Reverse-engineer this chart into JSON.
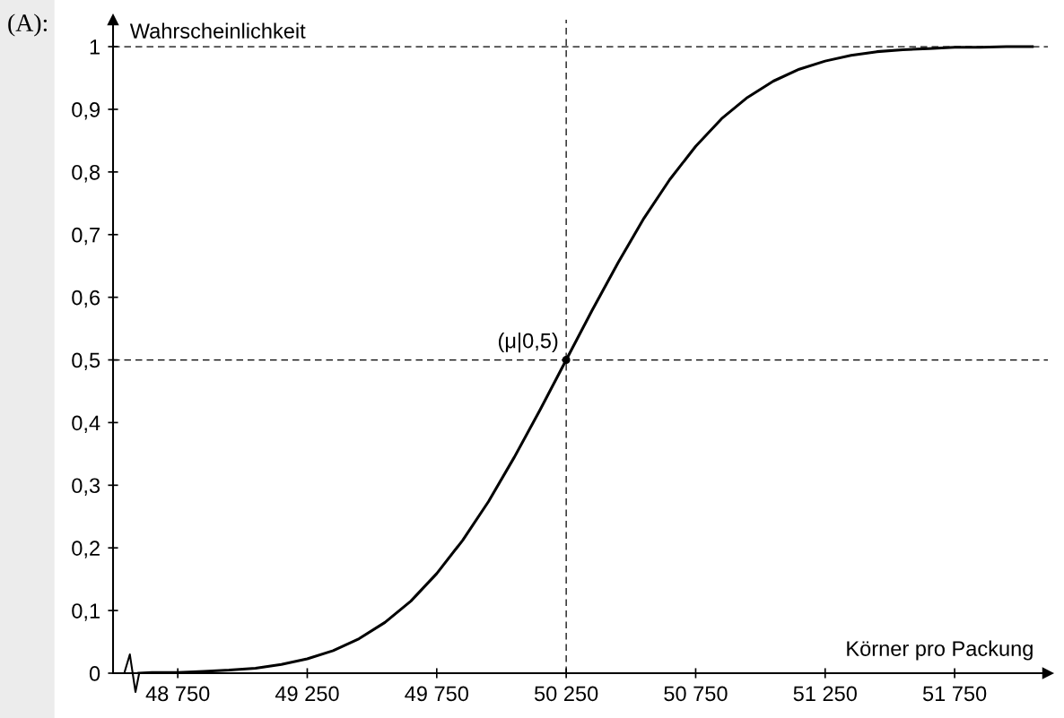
{
  "chart_data": {
    "type": "line",
    "xlabel": "Körner pro Packung",
    "ylabel": "Wahrscheinlichkeit",
    "annotations": [
      "(A):",
      {
        "text": "(μ|0,5)",
        "x": 50250,
        "y": 0.5
      }
    ],
    "series": [
      {
        "color": "#000000",
        "x": [
          48600,
          48650,
          48750,
          48850,
          48950,
          49050,
          49150,
          49250,
          49350,
          49450,
          49550,
          49650,
          49750,
          49850,
          49950,
          50050,
          50150,
          50250,
          50350,
          50450,
          50550,
          50650,
          50750,
          50850,
          50950,
          51050,
          51150,
          51250,
          51350,
          51450,
          51550,
          51650,
          51750,
          51850,
          51950,
          52050
        ],
        "values": [
          0.0,
          0.001,
          0.001,
          0.003,
          0.005,
          0.008,
          0.014,
          0.023,
          0.036,
          0.055,
          0.081,
          0.115,
          0.159,
          0.212,
          0.274,
          0.345,
          0.421,
          0.5,
          0.579,
          0.655,
          0.726,
          0.788,
          0.841,
          0.885,
          0.919,
          0.945,
          0.964,
          0.977,
          0.986,
          0.992,
          0.995,
          0.997,
          0.999,
          0.999,
          1.0,
          1.0
        ]
      },
      {
        "type": "scatter",
        "color": "#000000",
        "x": [
          50250
        ],
        "values": [
          0.5
        ]
      }
    ],
    "ref_lines": [
      {
        "axis": "y",
        "value": 1,
        "line_style": "dashed"
      },
      {
        "axis": "y",
        "value": 0.5,
        "line_style": "dashed"
      },
      {
        "axis": "x",
        "value": 50250,
        "line_style": "dashed"
      }
    ],
    "xlim": [
      48500,
      52110
    ],
    "ylim": [
      0,
      1.043
    ],
    "xticks": [
      {
        "value": 48750,
        "label": "48 750"
      },
      {
        "value": 49250,
        "label": "49 250"
      },
      {
        "value": 49750,
        "label": "49 750"
      },
      {
        "value": 50250,
        "label": "50 250"
      },
      {
        "value": 50750,
        "label": "50 750"
      },
      {
        "value": 51250,
        "label": "51 250"
      },
      {
        "value": 51750,
        "label": "51 750"
      }
    ],
    "yticks": [
      0,
      {
        "value": 0.1,
        "label": "0,1"
      },
      {
        "value": 0.2,
        "label": "0,2"
      },
      {
        "value": 0.3,
        "label": "0,3"
      },
      {
        "value": 0.4,
        "label": "0,4"
      },
      {
        "value": 0.5,
        "label": "0,5"
      },
      {
        "value": 0.6,
        "label": "0,6"
      },
      {
        "value": 0.7,
        "label": "0,7"
      },
      {
        "value": 0.8,
        "label": "0,8"
      },
      {
        "value": 0.9,
        "label": "0,9"
      },
      1
    ],
    "grid": false,
    "legend": false,
    "marker": "none",
    "line_style": "solid"
  }
}
